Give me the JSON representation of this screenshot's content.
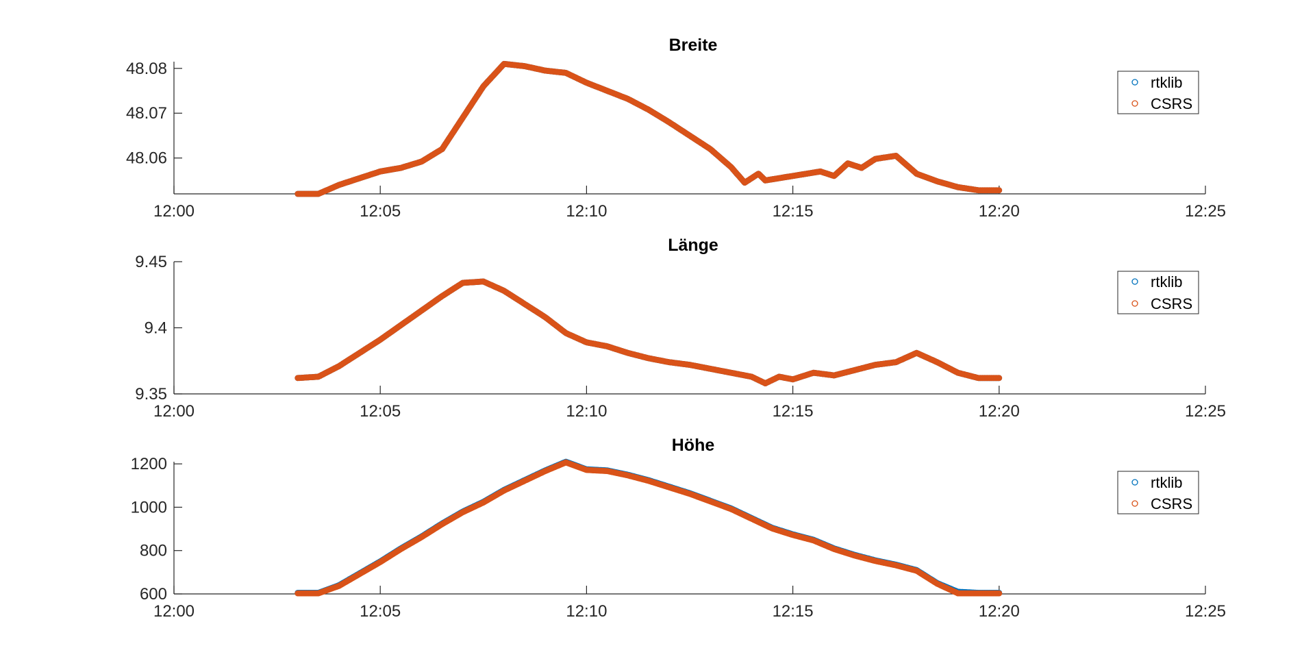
{
  "figure": {
    "colors": {
      "rtklib": "#0072BD",
      "csrs": "#D95319",
      "axis": "#262626"
    }
  },
  "chart_data": [
    {
      "type": "scatter",
      "title": "Breite",
      "xlabel": "",
      "ylabel": "",
      "xlim": [
        "12:00",
        "12:25"
      ],
      "xticks": [
        "12:00",
        "12:05",
        "12:10",
        "12:15",
        "12:20",
        "12:25"
      ],
      "ylim": [
        48.052,
        48.0815
      ],
      "yticks": [
        "48.06",
        "48.07",
        "48.08"
      ],
      "ytick_values": [
        48.06,
        48.07,
        48.08
      ],
      "grid": false,
      "legend": {
        "position": "top-right",
        "entries": [
          "rtklib",
          "CSRS"
        ]
      },
      "series": [
        {
          "name": "rtklib",
          "x": [
            "12:03",
            "12:03:30",
            "12:04",
            "12:04:30",
            "12:05",
            "12:05:30",
            "12:06",
            "12:06:30",
            "12:07",
            "12:07:30",
            "12:08",
            "12:08:30",
            "12:09",
            "12:09:30",
            "12:10",
            "12:10:30",
            "12:11",
            "12:11:30",
            "12:12",
            "12:12:30",
            "12:13",
            "12:13:30",
            "12:13:50",
            "12:14:10",
            "12:14:20",
            "12:14:40",
            "12:15",
            "12:15:20",
            "12:15:40",
            "12:16",
            "12:16:20",
            "12:16:40",
            "12:17",
            "12:17:30",
            "12:18",
            "12:18:30",
            "12:19",
            "12:19:30",
            "12:20"
          ],
          "y": [
            48.052,
            48.052,
            48.054,
            48.0555,
            48.057,
            48.0578,
            48.0592,
            48.062,
            48.069,
            48.076,
            48.081,
            48.0805,
            48.0795,
            48.079,
            48.0768,
            48.075,
            48.0732,
            48.0708,
            48.068,
            48.065,
            48.062,
            48.058,
            48.0545,
            48.0565,
            48.055,
            48.0555,
            48.056,
            48.0565,
            48.057,
            48.056,
            48.0588,
            48.0578,
            48.0598,
            48.0605,
            48.0565,
            48.0548,
            48.0535,
            48.0528,
            48.0528
          ]
        },
        {
          "name": "CSRS",
          "x": [
            "12:03",
            "12:03:30",
            "12:04",
            "12:04:30",
            "12:05",
            "12:05:30",
            "12:06",
            "12:06:30",
            "12:07",
            "12:07:30",
            "12:08",
            "12:08:30",
            "12:09",
            "12:09:30",
            "12:10",
            "12:10:30",
            "12:11",
            "12:11:30",
            "12:12",
            "12:12:30",
            "12:13",
            "12:13:30",
            "12:13:50",
            "12:14:10",
            "12:14:20",
            "12:14:40",
            "12:15",
            "12:15:20",
            "12:15:40",
            "12:16",
            "12:16:20",
            "12:16:40",
            "12:17",
            "12:17:30",
            "12:18",
            "12:18:30",
            "12:19",
            "12:19:30",
            "12:20"
          ],
          "y": [
            48.052,
            48.052,
            48.054,
            48.0555,
            48.057,
            48.0578,
            48.0592,
            48.062,
            48.069,
            48.076,
            48.081,
            48.0805,
            48.0795,
            48.079,
            48.0768,
            48.075,
            48.0732,
            48.0708,
            48.068,
            48.065,
            48.062,
            48.058,
            48.0545,
            48.0565,
            48.055,
            48.0555,
            48.056,
            48.0565,
            48.057,
            48.056,
            48.0588,
            48.0578,
            48.0598,
            48.0605,
            48.0565,
            48.0548,
            48.0535,
            48.0528,
            48.0528
          ]
        }
      ]
    },
    {
      "type": "scatter",
      "title": "Länge",
      "xlabel": "",
      "ylabel": "",
      "xlim": [
        "12:00",
        "12:25"
      ],
      "xticks": [
        "12:00",
        "12:05",
        "12:10",
        "12:15",
        "12:20",
        "12:25"
      ],
      "ylim": [
        9.35,
        9.45
      ],
      "yticks": [
        "9.35",
        "9.4",
        "9.45"
      ],
      "ytick_values": [
        9.35,
        9.4,
        9.45
      ],
      "grid": false,
      "legend": {
        "position": "top-right",
        "entries": [
          "rtklib",
          "CSRS"
        ]
      },
      "series": [
        {
          "name": "rtklib",
          "x": [
            "12:03",
            "12:03:30",
            "12:04",
            "12:04:30",
            "12:05",
            "12:05:30",
            "12:06",
            "12:06:30",
            "12:07",
            "12:07:30",
            "12:08",
            "12:08:30",
            "12:09",
            "12:09:30",
            "12:10",
            "12:10:30",
            "12:11",
            "12:11:30",
            "12:12",
            "12:12:30",
            "12:13",
            "12:13:30",
            "12:14",
            "12:14:20",
            "12:14:40",
            "12:15",
            "12:15:30",
            "12:16",
            "12:16:30",
            "12:17",
            "12:17:30",
            "12:18",
            "12:18:30",
            "12:19",
            "12:19:30",
            "12:20"
          ],
          "y": [
            9.362,
            9.363,
            9.371,
            9.381,
            9.391,
            9.402,
            9.413,
            9.424,
            9.434,
            9.435,
            9.428,
            9.418,
            9.408,
            9.396,
            9.389,
            9.386,
            9.381,
            9.377,
            9.374,
            9.372,
            9.369,
            9.366,
            9.363,
            9.358,
            9.363,
            9.361,
            9.366,
            9.364,
            9.368,
            9.372,
            9.374,
            9.381,
            9.374,
            9.366,
            9.362,
            9.362
          ]
        },
        {
          "name": "CSRS",
          "x": [
            "12:03",
            "12:03:30",
            "12:04",
            "12:04:30",
            "12:05",
            "12:05:30",
            "12:06",
            "12:06:30",
            "12:07",
            "12:07:30",
            "12:08",
            "12:08:30",
            "12:09",
            "12:09:30",
            "12:10",
            "12:10:30",
            "12:11",
            "12:11:30",
            "12:12",
            "12:12:30",
            "12:13",
            "12:13:30",
            "12:14",
            "12:14:20",
            "12:14:40",
            "12:15",
            "12:15:30",
            "12:16",
            "12:16:30",
            "12:17",
            "12:17:30",
            "12:18",
            "12:18:30",
            "12:19",
            "12:19:30",
            "12:20"
          ],
          "y": [
            9.362,
            9.363,
            9.371,
            9.381,
            9.391,
            9.402,
            9.413,
            9.424,
            9.434,
            9.435,
            9.428,
            9.418,
            9.408,
            9.396,
            9.389,
            9.386,
            9.381,
            9.377,
            9.374,
            9.372,
            9.369,
            9.366,
            9.363,
            9.358,
            9.363,
            9.361,
            9.366,
            9.364,
            9.368,
            9.372,
            9.374,
            9.381,
            9.374,
            9.366,
            9.362,
            9.362
          ]
        }
      ]
    },
    {
      "type": "scatter",
      "title": "Höhe",
      "xlabel": "",
      "ylabel": "",
      "xlim": [
        "12:00",
        "12:25"
      ],
      "xticks": [
        "12:00",
        "12:05",
        "12:10",
        "12:15",
        "12:20",
        "12:25"
      ],
      "ylim": [
        600,
        1210
      ],
      "yticks": [
        "600",
        "800",
        "1000",
        "1200"
      ],
      "ytick_values": [
        600,
        800,
        1000,
        1200
      ],
      "grid": false,
      "legend": {
        "position": "top-right",
        "entries": [
          "rtklib",
          "CSRS"
        ]
      },
      "series": [
        {
          "name": "rtklib",
          "x": [
            "12:03",
            "12:03:30",
            "12:04",
            "12:04:30",
            "12:05",
            "12:05:30",
            "12:06",
            "12:06:30",
            "12:07",
            "12:07:30",
            "12:08",
            "12:08:30",
            "12:09",
            "12:09:30",
            "12:10",
            "12:10:30",
            "12:11",
            "12:11:30",
            "12:12",
            "12:12:30",
            "12:13",
            "12:13:30",
            "12:14",
            "12:14:30",
            "12:15",
            "12:15:30",
            "12:16",
            "12:16:30",
            "12:17",
            "12:17:30",
            "12:18",
            "12:18:30",
            "12:19",
            "12:19:30",
            "12:20"
          ],
          "y": [
            605,
            605,
            640,
            695,
            750,
            810,
            865,
            925,
            980,
            1025,
            1080,
            1125,
            1170,
            1210,
            1175,
            1170,
            1150,
            1125,
            1095,
            1065,
            1030,
            995,
            950,
            905,
            875,
            850,
            810,
            780,
            755,
            735,
            710,
            650,
            610,
            605,
            605
          ]
        },
        {
          "name": "CSRS",
          "x": [
            "12:03",
            "12:03:30",
            "12:04",
            "12:04:30",
            "12:05",
            "12:05:30",
            "12:06",
            "12:06:30",
            "12:07",
            "12:07:30",
            "12:08",
            "12:08:30",
            "12:09",
            "12:09:30",
            "12:10",
            "12:10:30",
            "12:11",
            "12:11:30",
            "12:12",
            "12:12:30",
            "12:13",
            "12:13:30",
            "12:14",
            "12:14:30",
            "12:15",
            "12:15:30",
            "12:16",
            "12:16:30",
            "12:17",
            "12:17:30",
            "12:18",
            "12:18:30",
            "12:19",
            "12:19:30",
            "12:20"
          ],
          "y": [
            603,
            603,
            637,
            692,
            747,
            807,
            862,
            922,
            977,
            1022,
            1077,
            1122,
            1167,
            1207,
            1172,
            1167,
            1147,
            1122,
            1092,
            1062,
            1027,
            992,
            947,
            902,
            872,
            847,
            807,
            777,
            752,
            732,
            707,
            647,
            603,
            603,
            603
          ]
        }
      ]
    }
  ]
}
